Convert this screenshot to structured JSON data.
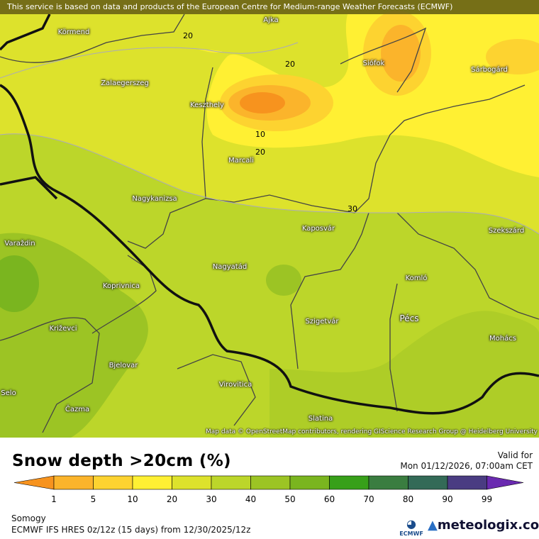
{
  "banner": "This service is based on data and products of the European Centre for Medium-range Weather Forecasts (ECMWF)",
  "attribution": "Map data © OpenStreetMap contributors, rendering GIScience Research Group @ Heidelberg University",
  "title": "Snow depth >20cm (%)",
  "valid_label": "Valid for",
  "valid_time": "Mon 01/12/2026, 07:00am CET",
  "region": "Somogy",
  "model": "ECMWF IFS HRES 0z/12z (15 days) from  12/30/2025/12z",
  "ecmwf_logo": "ECMWF",
  "brand": "meteologix.com",
  "legend": {
    "ticks": [
      "1",
      "5",
      "10",
      "20",
      "30",
      "40",
      "50",
      "60",
      "70",
      "80",
      "90",
      "99"
    ],
    "colors": [
      "#f7931e",
      "#fbb42b",
      "#fdd330",
      "#fff033",
      "#dde22c",
      "#bcd62a",
      "#9cc424",
      "#7ab51f",
      "#37a019",
      "#3a7d40",
      "#336a57",
      "#4a3c82",
      "#6a2ab0"
    ]
  },
  "contour_labels": [
    "20",
    "20",
    "10",
    "20",
    "30"
  ],
  "cities": [
    "Ajka",
    "Körmend",
    "Zalaegerszeg",
    "Keszthely",
    "Siófok",
    "Sárbogárd",
    "Marcali",
    "Nagykanizsa",
    "Kaposvár",
    "Szekszárd",
    "Varaždin",
    "Nagyatád",
    "Koprivnica",
    "Komló",
    "Pécs",
    "Szigetvár",
    "Križevci",
    "Mohács",
    "Bjelovar",
    "Virovitica",
    "Selo",
    "Čazma",
    "Slatina"
  ]
}
